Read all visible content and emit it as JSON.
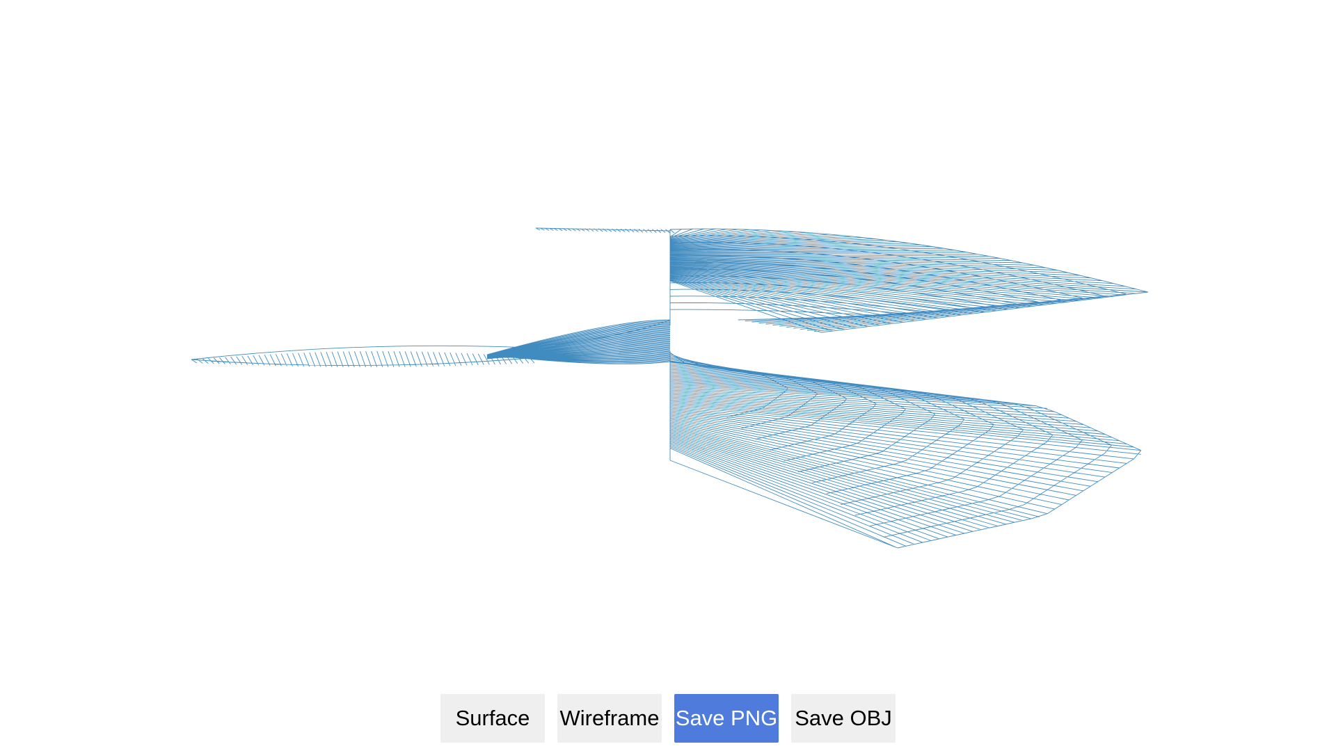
{
  "viewer": {
    "mode": "wireframe",
    "mesh_color": "#1f77b4",
    "background": "#ffffff"
  },
  "toolbar": {
    "buttons": [
      {
        "key": "surface",
        "label": "Surface",
        "active": false
      },
      {
        "key": "wireframe",
        "label": "Wireframe",
        "active": false
      },
      {
        "key": "save_png",
        "label": "Save PNG",
        "active": true
      },
      {
        "key": "save_obj",
        "label": "Save OBJ",
        "active": false
      }
    ],
    "active_color": "#4f7cdc",
    "inactive_color": "#efefef"
  }
}
